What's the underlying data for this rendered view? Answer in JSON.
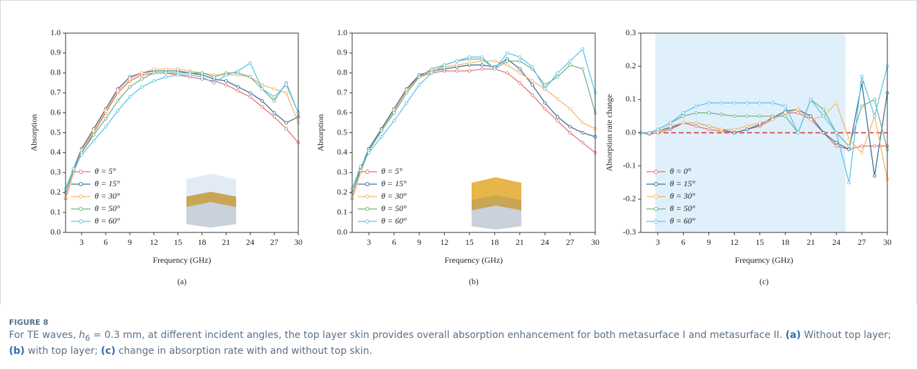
{
  "chart_data": [
    {
      "type": "line",
      "panel_label": "(a)",
      "x_label": "Frequency (GHz)",
      "y_label": "Absorption",
      "xlim": [
        1,
        30
      ],
      "xticks": [
        3,
        6,
        9,
        12,
        15,
        18,
        21,
        24,
        27,
        30
      ],
      "ylim": [
        0,
        1
      ],
      "yticks": [
        {
          "value": 0,
          "label": "0.0"
        },
        0.1,
        0.2,
        0.3,
        0.4,
        0.5,
        0.6,
        0.7,
        0.8,
        0.9,
        {
          "value": 1,
          "label": "1.0"
        }
      ],
      "legend": "lower left",
      "x": [
        1,
        2,
        3,
        4.5,
        6,
        7.5,
        9,
        10.5,
        12,
        13.5,
        15,
        16.5,
        18,
        19.5,
        21,
        22.5,
        24,
        25.5,
        27,
        28.5,
        30
      ],
      "series": [
        {
          "name": "θ = 5°",
          "color": "#e8706f",
          "values": [
            0.17,
            0.3,
            0.4,
            0.5,
            0.6,
            0.7,
            0.76,
            0.79,
            0.8,
            0.8,
            0.79,
            0.78,
            0.77,
            0.76,
            0.74,
            0.71,
            0.68,
            0.63,
            0.58,
            0.52,
            0.45
          ]
        },
        {
          "name": "θ = 15°",
          "color": "#3a6f95",
          "values": [
            0.2,
            0.32,
            0.42,
            0.52,
            0.62,
            0.72,
            0.78,
            0.8,
            0.81,
            0.81,
            0.81,
            0.8,
            0.79,
            0.77,
            0.76,
            0.73,
            0.7,
            0.66,
            0.6,
            0.55,
            0.58
          ]
        },
        {
          "name": "θ = 30°",
          "color": "#f2b66d",
          "values": [
            0.18,
            0.3,
            0.41,
            0.51,
            0.61,
            0.71,
            0.77,
            0.8,
            0.82,
            0.82,
            0.82,
            0.81,
            0.8,
            0.79,
            0.79,
            0.79,
            0.78,
            0.74,
            0.72,
            0.7,
            0.55
          ]
        },
        {
          "name": "θ = 50°",
          "color": "#6fb08c",
          "values": [
            0.2,
            0.31,
            0.4,
            0.49,
            0.57,
            0.66,
            0.73,
            0.77,
            0.8,
            0.8,
            0.8,
            0.8,
            0.8,
            0.78,
            0.8,
            0.8,
            0.78,
            0.72,
            0.66,
            0.75,
            0.6
          ]
        },
        {
          "name": "θ = 60°",
          "color": "#5cc4e8",
          "values": [
            0.22,
            0.32,
            0.39,
            0.46,
            0.53,
            0.61,
            0.68,
            0.73,
            0.76,
            0.78,
            0.79,
            0.79,
            0.78,
            0.75,
            0.79,
            0.81,
            0.85,
            0.72,
            0.68,
            0.74,
            0.6
          ]
        }
      ]
    },
    {
      "type": "line",
      "panel_label": "(b)",
      "x_label": "Frequency (GHz)",
      "y_label": "Absorption",
      "xlim": [
        1,
        30
      ],
      "xticks": [
        3,
        6,
        9,
        12,
        15,
        18,
        21,
        24,
        27,
        30
      ],
      "ylim": [
        0,
        1
      ],
      "yticks": [
        {
          "value": 0,
          "label": "0.0"
        },
        0.1,
        0.2,
        0.3,
        0.4,
        0.5,
        0.6,
        0.7,
        0.8,
        0.9,
        {
          "value": 1,
          "label": "1.0"
        }
      ],
      "legend": "lower left",
      "x": [
        1,
        2,
        3,
        4.5,
        6,
        7.5,
        9,
        10.5,
        12,
        13.5,
        15,
        16.5,
        18,
        19.5,
        21,
        22.5,
        24,
        25.5,
        27,
        28.5,
        30
      ],
      "series": [
        {
          "name": "θ = 5°",
          "color": "#e8706f",
          "values": [
            0.17,
            0.3,
            0.42,
            0.52,
            0.62,
            0.72,
            0.78,
            0.8,
            0.81,
            0.81,
            0.81,
            0.82,
            0.82,
            0.8,
            0.75,
            0.69,
            0.62,
            0.56,
            0.5,
            0.45,
            0.4
          ]
        },
        {
          "name": "θ = 15°",
          "color": "#3a6f95",
          "values": [
            0.2,
            0.32,
            0.42,
            0.52,
            0.62,
            0.72,
            0.79,
            0.81,
            0.82,
            0.83,
            0.84,
            0.84,
            0.83,
            0.87,
            0.82,
            0.74,
            0.65,
            0.58,
            0.53,
            0.5,
            0.48
          ]
        },
        {
          "name": "θ = 30°",
          "color": "#f2b66d",
          "values": [
            0.18,
            0.3,
            0.41,
            0.51,
            0.61,
            0.71,
            0.78,
            0.81,
            0.83,
            0.84,
            0.85,
            0.86,
            0.86,
            0.84,
            0.8,
            0.76,
            0.72,
            0.67,
            0.62,
            0.55,
            0.52
          ]
        },
        {
          "name": "θ = 50°",
          "color": "#6fb08c",
          "values": [
            0.2,
            0.31,
            0.41,
            0.51,
            0.6,
            0.7,
            0.78,
            0.82,
            0.84,
            0.86,
            0.87,
            0.87,
            0.82,
            0.86,
            0.86,
            0.82,
            0.74,
            0.78,
            0.84,
            0.82,
            0.6
          ]
        },
        {
          "name": "θ = 60°",
          "color": "#5cc4e8",
          "values": [
            0.22,
            0.33,
            0.4,
            0.48,
            0.56,
            0.65,
            0.74,
            0.8,
            0.84,
            0.86,
            0.88,
            0.88,
            0.82,
            0.9,
            0.88,
            0.83,
            0.72,
            0.8,
            0.86,
            0.92,
            0.7
          ]
        }
      ]
    },
    {
      "type": "line",
      "panel_label": "(c)",
      "x_label": "Frequency (GHz)",
      "y_label": "Absorption rate change",
      "xlim": [
        1,
        30
      ],
      "xticks": [
        3,
        6,
        9,
        12,
        15,
        18,
        21,
        24,
        27,
        30
      ],
      "ylim": [
        -0.3,
        0.3
      ],
      "yticks": [
        -0.3,
        -0.2,
        -0.1,
        {
          "value": 0,
          "label": "0.0"
        },
        0.1,
        0.2,
        0.3
      ],
      "legend": "lower left",
      "highlight_x": [
        2.7,
        25.1
      ],
      "reference_y": 0,
      "reference_color": "#d9433f",
      "x": [
        1,
        2,
        3,
        4.5,
        6,
        7.5,
        9,
        10.5,
        12,
        13.5,
        15,
        16.5,
        18,
        19.5,
        21,
        22.5,
        24,
        25.5,
        27,
        28.5,
        30
      ],
      "series": [
        {
          "name": "θ = 0°",
          "color": "#e8706f",
          "values": [
            0,
            -0.005,
            0,
            0.01,
            0.03,
            0.02,
            0.01,
            0.005,
            0,
            0.01,
            0.02,
            0.04,
            0.06,
            0.06,
            0.04,
            0,
            -0.04,
            -0.05,
            -0.04,
            -0.04,
            -0.04
          ]
        },
        {
          "name": "θ = 15°",
          "color": "#3a6f95",
          "values": [
            0,
            0,
            0.005,
            0.015,
            0.03,
            0.03,
            0.02,
            0.01,
            0,
            0.01,
            0.025,
            0.045,
            0.065,
            0.07,
            0.05,
            0,
            -0.03,
            -0.05,
            0.15,
            -0.13,
            0.12
          ]
        },
        {
          "name": "θ = 30°",
          "color": "#f2b66d",
          "values": [
            0,
            0,
            0.005,
            0.02,
            0.03,
            0.03,
            0.02,
            0.01,
            0.01,
            0.02,
            0.03,
            0.04,
            0.06,
            0.07,
            0.04,
            0.05,
            0.09,
            -0.02,
            -0.06,
            0.05,
            -0.14
          ]
        },
        {
          "name": "θ = 50°",
          "color": "#6fb08c",
          "values": [
            0,
            0,
            0.01,
            0.03,
            0.05,
            0.06,
            0.06,
            0.055,
            0.05,
            0.05,
            0.05,
            0.05,
            0.05,
            0,
            0.1,
            0.07,
            0,
            -0.04,
            0.08,
            0.1,
            -0.05
          ]
        },
        {
          "name": "θ = 60°",
          "color": "#5cc4e8",
          "values": [
            0,
            0,
            0.01,
            0.03,
            0.06,
            0.08,
            0.09,
            0.09,
            0.09,
            0.09,
            0.09,
            0.09,
            0.08,
            0,
            0.1,
            0.05,
            0,
            -0.15,
            0.17,
            0.05,
            0.2
          ]
        }
      ]
    }
  ],
  "caption": {
    "label": "FIGURE 8",
    "text1": "For TE waves, ",
    "var": "h",
    "sub": "6",
    "text2": " = 0.3 mm, at different incident angles, the top layer skin provides overall absorption enhancement for both metasurface I and metasurface II. ",
    "a": "(a)",
    "a_text": " Without top layer; ",
    "b": "(b)",
    "b_text": " with top layer; ",
    "c": "(c)",
    "c_text": " change in absorption rate with and without top skin."
  }
}
